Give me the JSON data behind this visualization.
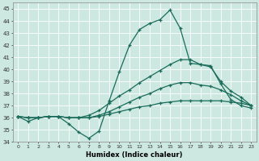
{
  "xlabel": "Humidex (Indice chaleur)",
  "bg_color": "#cce8e0",
  "line_color": "#1a6b5a",
  "xlim": [
    -0.5,
    23.5
  ],
  "ylim": [
    34,
    45.5
  ],
  "xticks": [
    0,
    1,
    2,
    3,
    4,
    5,
    6,
    7,
    8,
    9,
    10,
    11,
    12,
    13,
    14,
    15,
    16,
    17,
    18,
    19,
    20,
    21,
    22,
    23
  ],
  "yticks": [
    34,
    35,
    36,
    37,
    38,
    39,
    40,
    41,
    42,
    43,
    44,
    45
  ],
  "series": [
    [
      36.1,
      35.7,
      36.0,
      36.1,
      36.1,
      35.5,
      34.8,
      34.3,
      34.9,
      37.4,
      39.8,
      42.0,
      43.3,
      43.8,
      44.1,
      44.9,
      43.4,
      40.5,
      40.4,
      40.3,
      38.8,
      37.5,
      37.0,
      36.8
    ],
    [
      36.1,
      36.0,
      36.0,
      36.1,
      36.1,
      36.0,
      36.0,
      36.2,
      36.6,
      37.2,
      37.8,
      38.3,
      38.9,
      39.4,
      39.9,
      40.4,
      40.8,
      40.8,
      40.4,
      40.2,
      39.0,
      38.2,
      37.7,
      37.0
    ],
    [
      36.1,
      36.0,
      36.0,
      36.1,
      36.1,
      36.0,
      36.0,
      36.0,
      36.2,
      36.5,
      36.9,
      37.3,
      37.7,
      38.0,
      38.4,
      38.7,
      38.9,
      38.9,
      38.7,
      38.6,
      38.3,
      37.9,
      37.4,
      37.0
    ],
    [
      36.1,
      36.0,
      36.0,
      36.1,
      36.1,
      36.0,
      36.0,
      36.0,
      36.1,
      36.3,
      36.5,
      36.7,
      36.9,
      37.0,
      37.2,
      37.3,
      37.4,
      37.4,
      37.4,
      37.4,
      37.4,
      37.3,
      37.2,
      37.0
    ]
  ]
}
